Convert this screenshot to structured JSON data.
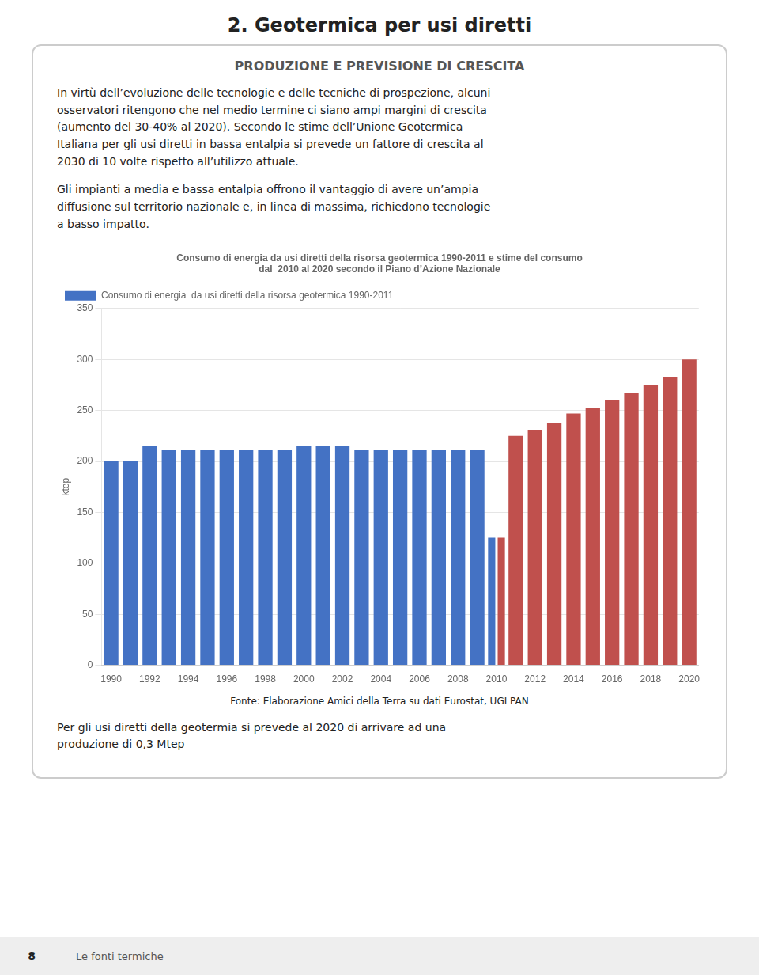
{
  "title": "2. Geotermica per usi diretti",
  "subtitle": "PRODUZIONE E PREVISIONE DI CRESCITA",
  "paragraphs": [
    "In virtù dell’evoluzione delle tecnologie e delle tecniche di prospezione, alcuni\nosservatori ritengono che nel medio termine ci siano ampi margini di crescita\n(aumento del 30-40% al 2020). Secondo le stime dell’Unione Geotermica\nItaliana per gli usi diretti in bassa entalpia si prevede un fattore di crescita al\n2030 di 10 volte rispetto all’utilizzo attuale.",
    "Gli impianti a media e bassa entalpia offrono il vantaggio di avere un’ampia\ndiffusione sul territorio nazionale e, in linea di massima, richiedono tecnologie\na basso impatto."
  ],
  "closing_paragraph": "Per gli usi diretti della geotermia si prevede al 2020 di arrivare ad una\nproduzione di 0,3 Mtep",
  "source": "Fonte: Elaborazione Amici della Terra su dati Eurostat, UGI  PAN",
  "footer": "Le fonti termiche",
  "page_number": "8",
  "chart_data": {
    "type": "bar",
    "title": [
      "Consumo di energia da usi diretti della risorsa geotermica 1990-2011 e stime del consumo",
      "dal  2010 al 2020 secondo il Piano d’Azione Nazionale"
    ],
    "ylabel": "ktep",
    "categories": [
      1990,
      null,
      1992,
      null,
      1994,
      null,
      1996,
      null,
      1998,
      null,
      2000,
      null,
      2002,
      null,
      2004,
      null,
      2006,
      null,
      2008,
      null,
      2010,
      null,
      2012,
      null,
      2014,
      null,
      2016,
      null,
      2018,
      null,
      2020
    ],
    "series": [
      {
        "name": "Consumo di energia  da usi diretti della risorsa geotermica 1990-2011",
        "color": "#4472C4",
        "values": [
          200,
          200,
          215,
          211,
          211,
          211,
          211,
          211,
          211,
          211,
          215,
          215,
          215,
          211,
          211,
          211,
          211,
          211,
          211,
          211,
          125,
          0,
          0,
          0,
          0,
          0,
          0,
          0,
          0,
          0,
          0
        ]
      },
      {
        "color": "#C0504D",
        "values": [
          0,
          0,
          0,
          0,
          0,
          0,
          0,
          0,
          0,
          0,
          0,
          0,
          0,
          0,
          0,
          0,
          0,
          0,
          0,
          0,
          125,
          225,
          231,
          238,
          247,
          252,
          260,
          267,
          275,
          283,
          300
        ]
      }
    ],
    "ylim": [
      0,
      350
    ],
    "yticks": [
      0,
      50,
      100,
      150,
      200,
      250,
      300,
      350
    ],
    "grid": true,
    "legend": "top-left"
  }
}
